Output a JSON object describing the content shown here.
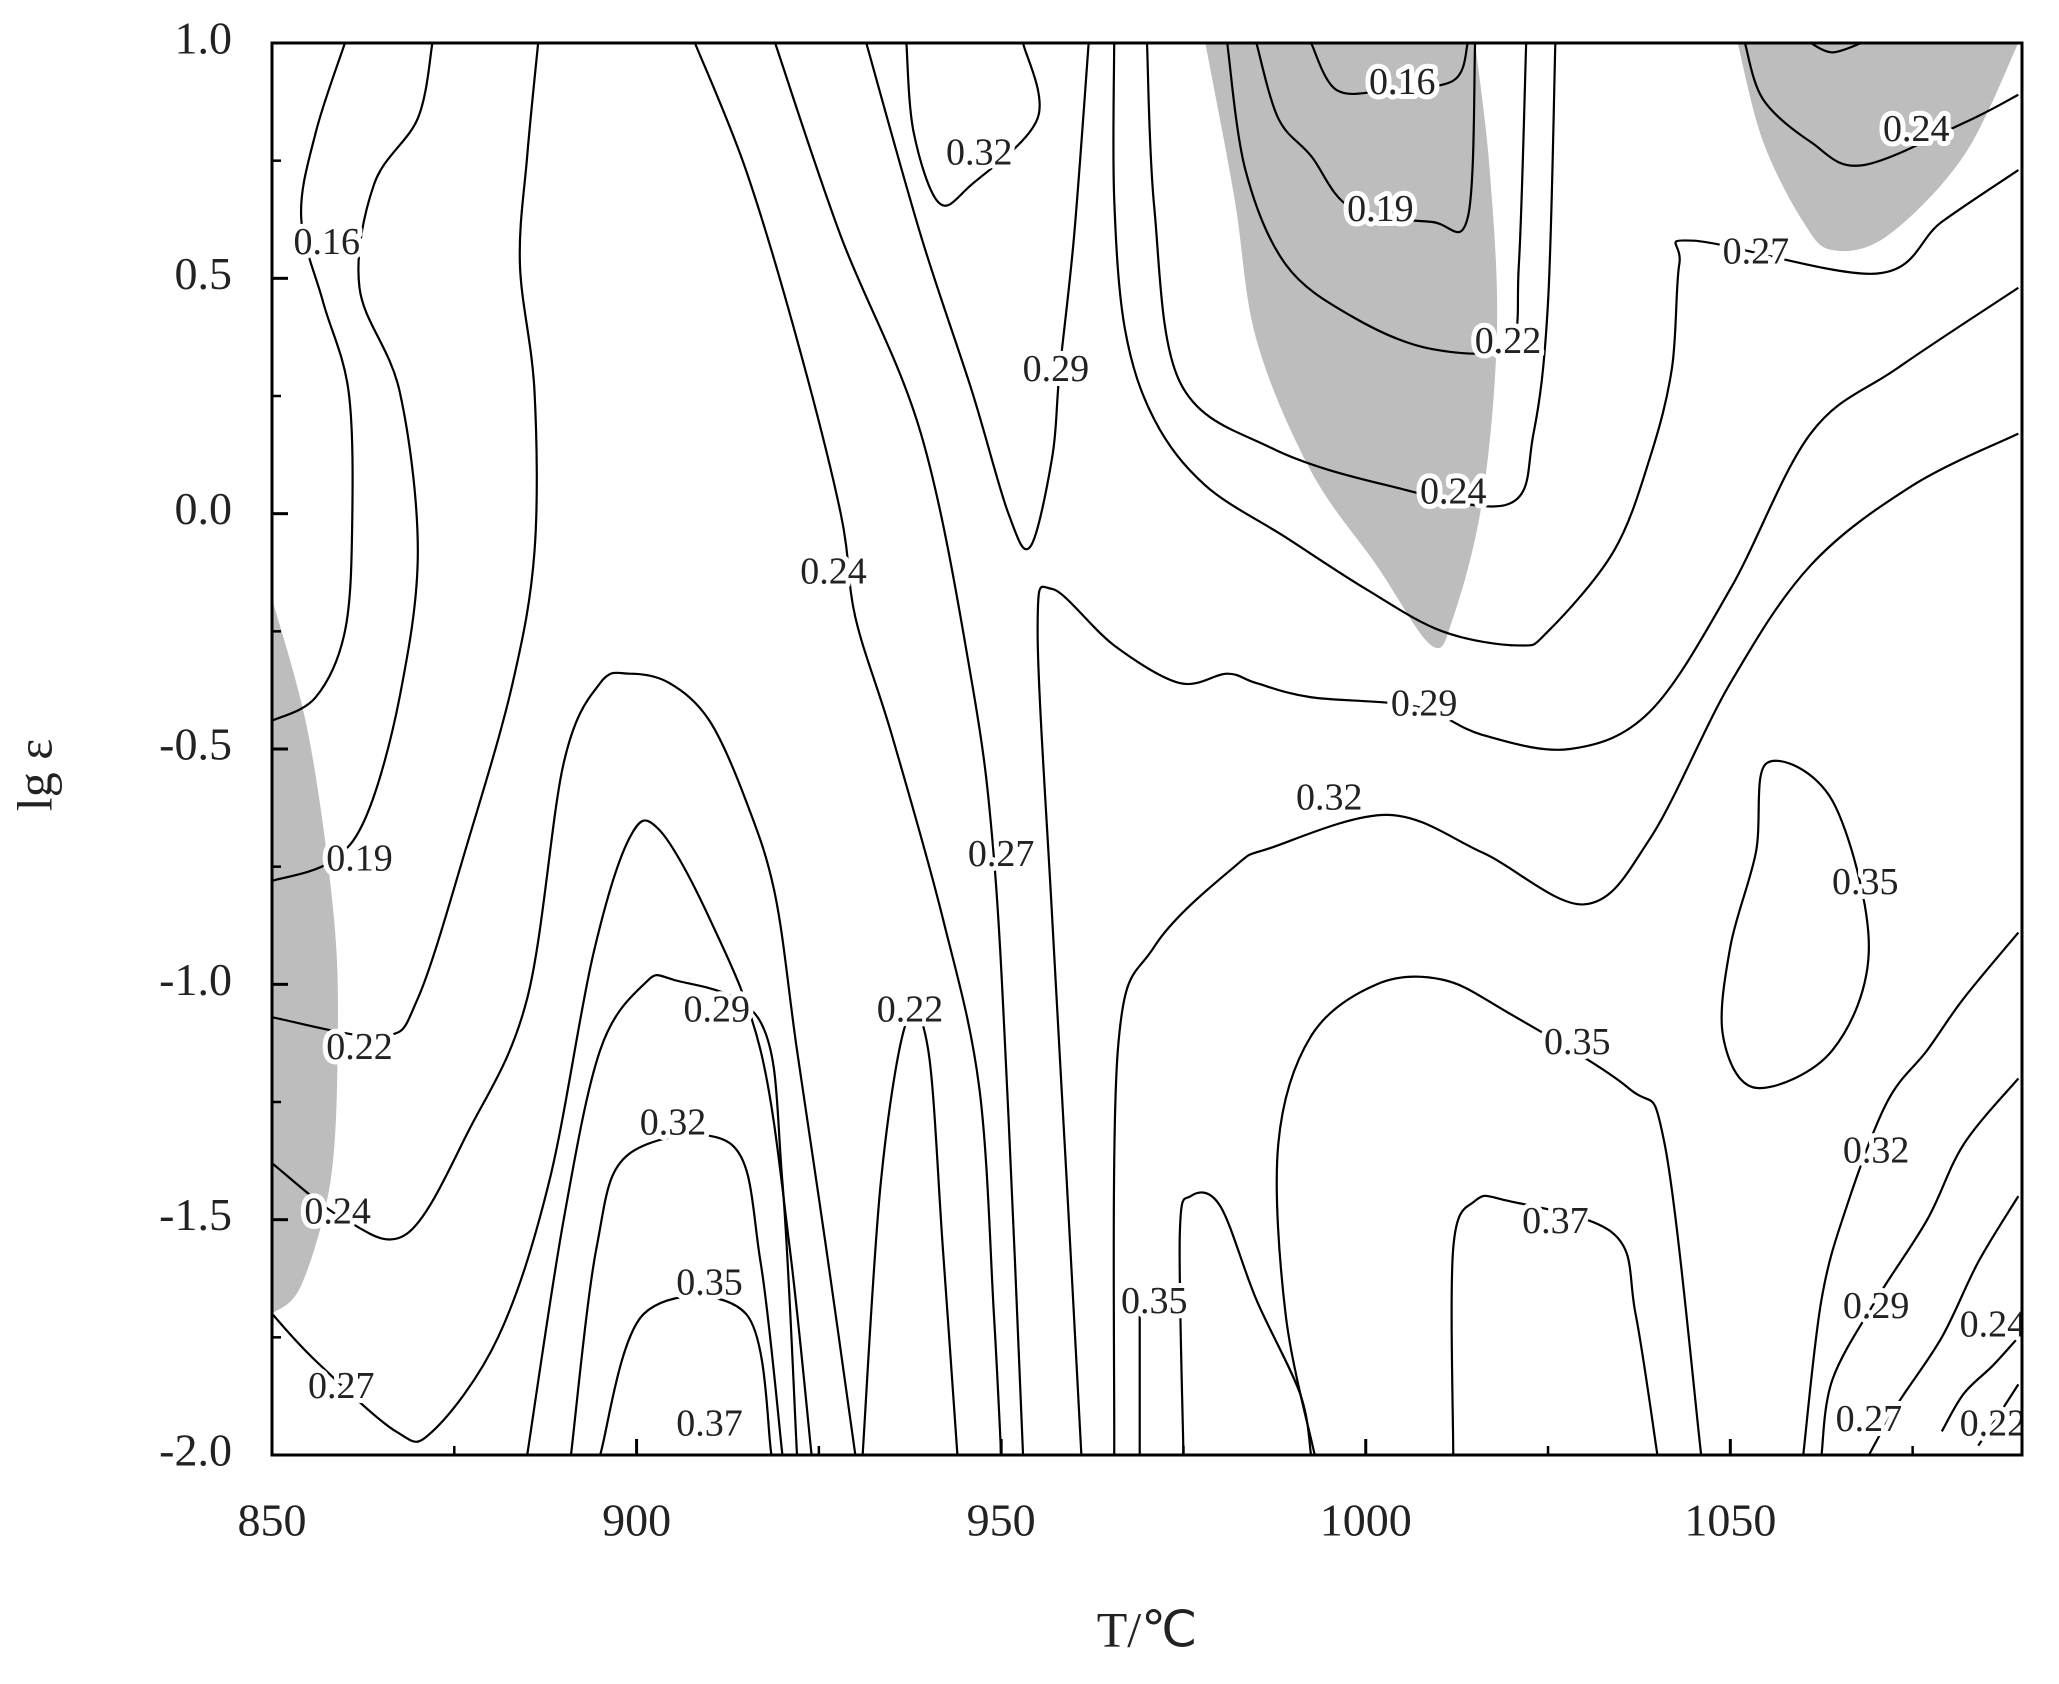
{
  "chart_data": {
    "type": "contour",
    "xlabel": "T/℃",
    "ylabel": "lg ε",
    "xlim": [
      850,
      1090
    ],
    "ylim": [
      -2,
      1
    ],
    "xticks": [
      850,
      900,
      950,
      1000,
      1050
    ],
    "yticks": [
      {
        "value": 1,
        "label": "1.0"
      },
      0.5,
      {
        "value": 0,
        "label": "0.0"
      },
      -0.5,
      {
        "value": -1,
        "label": "-1.0"
      },
      -1.5,
      {
        "value": -2,
        "label": "-2.0"
      }
    ],
    "xminorticks": [
      875,
      925,
      975,
      1025,
      1075
    ],
    "yminorticks": [
      0.75,
      0.25,
      -0.25,
      -0.75,
      -1.25,
      -1.75
    ],
    "line_color": "#000000",
    "region_color": "#bdbdbd",
    "regions": [
      {
        "x": [
          850,
          855,
          858.5,
          859,
          858,
          854,
          850
        ],
        "y": [
          -0.18,
          -0.47,
          -0.86,
          -1.14,
          -1.42,
          -1.64,
          -1.7
        ]
      },
      {
        "x": [
          978,
          982,
          985,
          992.5,
          1001.5,
          1009,
          1012,
          1016,
          1018,
          1017,
          1015
        ],
        "y": [
          1,
          0.67,
          0.37,
          0.09,
          -0.11,
          -0.28,
          -0.22,
          0.03,
          0.39,
          0.73,
          1
        ]
      },
      {
        "x": [
          1051,
          1054.5,
          1060,
          1064,
          1071.5,
          1082,
          1089.5
        ],
        "y": [
          1,
          0.79,
          0.62,
          0.56,
          0.59,
          0.76,
          1
        ]
      }
    ],
    "contours": [
      {
        "x": [
          860,
          856,
          854,
          857,
          860.5,
          861,
          860,
          856,
          850
        ],
        "y": [
          1,
          0.81,
          0.63,
          0.45,
          0.26,
          -0.02,
          -0.25,
          -0.39,
          -0.44
        ]
      },
      {
        "x": [
          872,
          870,
          864,
          862,
          867.5,
          870,
          867.5,
          863,
          858,
          850
        ],
        "y": [
          1,
          0.84,
          0.7,
          0.48,
          0.26,
          -0.08,
          -0.39,
          -0.64,
          -0.74,
          -0.78
        ]
      },
      {
        "x": [
          886.5,
          885,
          884,
          886,
          886,
          883,
          877,
          870,
          865,
          850
        ],
        "y": [
          1,
          0.76,
          0.53,
          0.26,
          -0.08,
          -0.36,
          -0.69,
          -1.03,
          -1.11,
          -1.07
        ]
      },
      {
        "x": [
          850,
          860,
          868.5,
          877,
          885,
          890,
          895,
          899,
          904.5,
          910,
          915,
          919,
          922,
          926,
          930
        ],
        "y": [
          -1.38,
          -1.5,
          -1.53,
          -1.31,
          -1.03,
          -0.53,
          -0.36,
          -0.34,
          -0.36,
          -0.44,
          -0.61,
          -0.81,
          -1.14,
          -1.56,
          -2
        ]
      },
      {
        "x": [
          850,
          856,
          867,
          872,
          881,
          888,
          894,
          899,
          903,
          910,
          917,
          921,
          924
        ],
        "y": [
          -1.7,
          -1.8,
          -1.95,
          -1.95,
          -1.75,
          -1.42,
          -0.94,
          -0.69,
          -0.67,
          -0.86,
          -1.14,
          -1.56,
          -2
        ]
      },
      {
        "x": [
          885,
          890,
          895,
          901,
          905,
          917,
          920,
          922
        ],
        "y": [
          -2,
          -1.5,
          -1.14,
          -1,
          -0.99,
          -1.08,
          -1.42,
          -2
        ]
      },
      {
        "x": [
          891,
          894.5,
          899,
          913,
          917,
          920
        ],
        "y": [
          -2,
          -1.56,
          -1.36,
          -1.34,
          -1.59,
          -2
        ]
      },
      {
        "x": [
          895,
          901,
          915,
          918.5
        ],
        "y": [
          -2,
          -1.7,
          -1.7,
          -2
        ]
      },
      {
        "x": [
          908,
          915,
          922,
          928,
          930,
          935,
          942,
          947,
          949,
          950
        ],
        "y": [
          1,
          0.73,
          0.37,
          0,
          -0.22,
          -0.47,
          -0.86,
          -1.22,
          -1.7,
          -2
        ]
      },
      {
        "x": [
          931,
          933.5,
          937,
          940,
          942,
          944
        ],
        "y": [
          -2,
          -1.42,
          -1.08,
          -1.14,
          -1.56,
          -2
        ]
      },
      {
        "x": [
          919,
          928,
          939,
          946,
          949,
          951,
          953
        ],
        "y": [
          1,
          0.59,
          0.17,
          -0.36,
          -0.73,
          -1.28,
          -2
        ]
      },
      {
        "x": [
          931.5,
          939,
          946,
          951,
          954,
          957,
          958,
          960,
          962
        ],
        "y": [
          1,
          0.59,
          0.26,
          0,
          -0.07,
          0.12,
          0.3,
          0.59,
          1
        ]
      },
      {
        "x": [
          937,
          938,
          941.5,
          946,
          955,
          953
        ],
        "y": [
          1,
          0.81,
          0.66,
          0.7,
          0.84,
          1
        ]
      },
      {
        "x": [
          961,
          959,
          957,
          955,
          957,
          965.5,
          974.5,
          981,
          985,
          992.5,
          1007,
          1016,
          1028,
          1039,
          1050,
          1061,
          1073,
          1089.5
        ],
        "y": [
          -2,
          -1.42,
          -0.86,
          -0.25,
          -0.16,
          -0.28,
          -0.36,
          -0.34,
          -0.36,
          -0.39,
          -0.41,
          -0.47,
          -0.5,
          -0.42,
          -0.16,
          0.17,
          0.31,
          0.48
        ]
      },
      {
        "x": [
          965.5,
          966,
          971,
          982,
          987,
          1003,
          1016,
          1030,
          1039,
          1050,
          1061,
          1075,
          1089.5
        ],
        "y": [
          -2,
          -1.14,
          -0.92,
          -0.75,
          -0.71,
          -0.64,
          -0.72,
          -0.83,
          -0.69,
          -0.36,
          -0.11,
          0.06,
          0.17
        ]
      },
      {
        "x": [
          993,
          989,
          988,
          992.5,
          1001.5,
          1010.5,
          1019.5,
          1036,
          1041,
          1046
        ],
        "y": [
          -2,
          -1.7,
          -1.34,
          -1.11,
          -1,
          -0.99,
          -1.06,
          -1.22,
          -1.34,
          -2
        ]
      },
      {
        "x": [
          1055,
          1064,
          1069,
          1064,
          1053.5,
          1049,
          1050,
          1053.5,
          1055
        ],
        "y": [
          -0.53,
          -0.61,
          -0.92,
          -1.14,
          -1.22,
          -1.11,
          -0.92,
          -0.72,
          -0.53
        ]
      },
      {
        "x": [
          1012,
          1012,
          1015,
          1019.5,
          1034,
          1037,
          1040
        ],
        "y": [
          -2,
          -1.56,
          -1.46,
          -1.46,
          -1.53,
          -1.7,
          -2
        ]
      },
      {
        "x": [
          975,
          974.5,
          976,
          980,
          985,
          991,
          992.5
        ],
        "y": [
          -2,
          -1.53,
          -1.45,
          -1.47,
          -1.67,
          -1.87,
          -2
        ]
      },
      {
        "x": [
          969,
          969
        ],
        "y": [
          -2,
          -1.7
        ]
      },
      {
        "x": [
          992.5,
          996,
          1003,
          1012,
          1014
        ],
        "y": [
          1,
          0.9,
          0.9,
          0.92,
          1
        ]
      },
      {
        "x": [
          985,
          988,
          992.5,
          998,
          1009,
          1014,
          1015
        ],
        "y": [
          1,
          0.84,
          0.76,
          0.65,
          0.62,
          0.63,
          1
        ]
      },
      {
        "x": [
          981,
          983.5,
          989,
          998,
          1009,
          1019.5,
          1021,
          1022
        ],
        "y": [
          1,
          0.73,
          0.53,
          0.42,
          0.35,
          0.36,
          0.53,
          1
        ]
      },
      {
        "x": [
          970,
          971,
          974.5,
          987,
          1003,
          1019.5,
          1023,
          1025,
          1026
        ],
        "y": [
          1,
          0.65,
          0.28,
          0.14,
          0.06,
          0.02,
          0.17,
          0.45,
          1
        ]
      },
      {
        "x": [
          1089.5,
          1079,
          1070,
          1045,
          1043,
          1042,
          1039,
          1034,
          1025,
          1021,
          1010.5,
          1000,
          989,
          978,
          971,
          967,
          965.5,
          965.5
        ],
        "y": [
          0.73,
          0.62,
          0.51,
          0.58,
          0.53,
          0.31,
          0.12,
          -0.08,
          -0.25,
          -0.28,
          -0.25,
          -0.16,
          -0.05,
          0.06,
          0.2,
          0.39,
          0.67,
          1
        ]
      },
      {
        "x": [
          1052,
          1054.5,
          1061,
          1068,
          1082,
          1089.5
        ],
        "y": [
          1,
          0.88,
          0.79,
          0.74,
          0.83,
          0.89
        ]
      },
      {
        "x": [
          1061,
          1064,
          1068
        ],
        "y": [
          1,
          0.98,
          1
        ]
      },
      {
        "x": [
          1089.5,
          1082,
          1077,
          1071.5,
          1066,
          1062.5,
          1060
        ],
        "y": [
          -0.89,
          -1.03,
          -1.14,
          -1.25,
          -1.47,
          -1.67,
          -2
        ]
      },
      {
        "x": [
          1089.5,
          1082,
          1077,
          1070,
          1064,
          1062.5
        ],
        "y": [
          -1.2,
          -1.34,
          -1.5,
          -1.67,
          -1.84,
          -2
        ]
      },
      {
        "x": [
          1089.5,
          1084,
          1079,
          1073,
          1069
        ],
        "y": [
          -1.45,
          -1.59,
          -1.75,
          -1.89,
          -2
        ]
      },
      {
        "x": [
          1089.5,
          1086,
          1082,
          1079
        ],
        "y": [
          -1.75,
          -1.81,
          -1.87,
          -1.95
        ]
      },
      {
        "x": [
          1089.5,
          1087,
          1084
        ],
        "y": [
          -1.85,
          -1.91,
          -1.98
        ]
      }
    ],
    "labels": [
      {
        "x": 857.5,
        "y": 0.57,
        "value": 0.16
      },
      {
        "x": 862,
        "y": -0.74,
        "value": 0.19
      },
      {
        "x": 862,
        "y": -1.14,
        "value": 0.22
      },
      {
        "x": 859,
        "y": -1.49,
        "value": 0.24
      },
      {
        "x": 859.5,
        "y": -1.86,
        "value": 0.27
      },
      {
        "x": 911,
        "y": -1.06,
        "value": 0.29
      },
      {
        "x": 905,
        "y": -1.3,
        "value": 0.32
      },
      {
        "x": 910,
        "y": -1.64,
        "value": 0.35
      },
      {
        "x": 910,
        "y": -1.94,
        "value": 0.37
      },
      {
        "x": 927,
        "y": -0.13,
        "value": 0.24
      },
      {
        "x": 937.5,
        "y": -1.06,
        "value": 0.22
      },
      {
        "x": 950,
        "y": -0.73,
        "value": 0.27
      },
      {
        "x": 957.5,
        "y": 0.3,
        "value": 0.29
      },
      {
        "x": 947,
        "y": 0.76,
        "value": 0.32
      },
      {
        "x": 1008,
        "y": -0.41,
        "value": 0.29
      },
      {
        "x": 995,
        "y": -0.61,
        "value": 0.32
      },
      {
        "x": 1029,
        "y": -1.13,
        "value": 0.35
      },
      {
        "x": 1068.5,
        "y": -0.79,
        "value": 0.35
      },
      {
        "x": 1026,
        "y": -1.51,
        "value": 0.37
      },
      {
        "x": 971,
        "y": -1.68,
        "value": 0.35
      },
      {
        "x": 1005,
        "y": 0.91,
        "value": 0.16
      },
      {
        "x": 1002,
        "y": 0.64,
        "value": 0.19
      },
      {
        "x": 1019.5,
        "y": 0.36,
        "value": 0.22
      },
      {
        "x": 1012,
        "y": 0.04,
        "value": 0.24
      },
      {
        "x": 1053.5,
        "y": 0.55,
        "value": 0.27
      },
      {
        "x": 1075.5,
        "y": 0.81,
        "value": 0.24
      },
      {
        "x": 1070,
        "y": -1.36,
        "value": 0.32
      },
      {
        "x": 1070,
        "y": -1.69,
        "value": 0.29
      },
      {
        "x": 1069,
        "y": -1.93,
        "value": 0.27
      },
      {
        "x": 1086,
        "y": -1.73,
        "value": 0.24
      },
      {
        "x": 1086,
        "y": -1.94,
        "value": 0.22
      }
    ]
  }
}
